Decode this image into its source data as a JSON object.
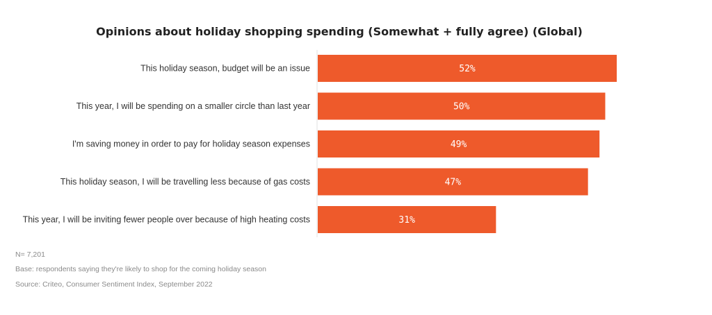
{
  "chart_data": {
    "type": "bar",
    "orientation": "horizontal",
    "title": "Opinions about holiday shopping spending (Somewhat + fully agree) (Global)",
    "categories": [
      "This holiday season, budget will be an issue",
      "This year, I will be spending on a smaller circle than last year",
      "I'm saving money in order to pay for holiday season expenses",
      "This holiday season, I will be travelling less because of gas costs",
      "This year, I will be inviting fewer people over because of high heating costs"
    ],
    "values": [
      52,
      50,
      49,
      47,
      31
    ],
    "value_labels": [
      "52%",
      "50%",
      "49%",
      "47%",
      "31%"
    ],
    "xlim": [
      0,
      60
    ],
    "grid": false,
    "legend": "none",
    "bar_color": "#ee5a2b",
    "axis_color": "#e0e0e0"
  },
  "notes": {
    "n": "N= 7,201",
    "base": "Base: respondents saying they're likely to shop for the coming holiday season",
    "source": "Source: Criteo, Consumer Sentiment Index, September 2022"
  }
}
